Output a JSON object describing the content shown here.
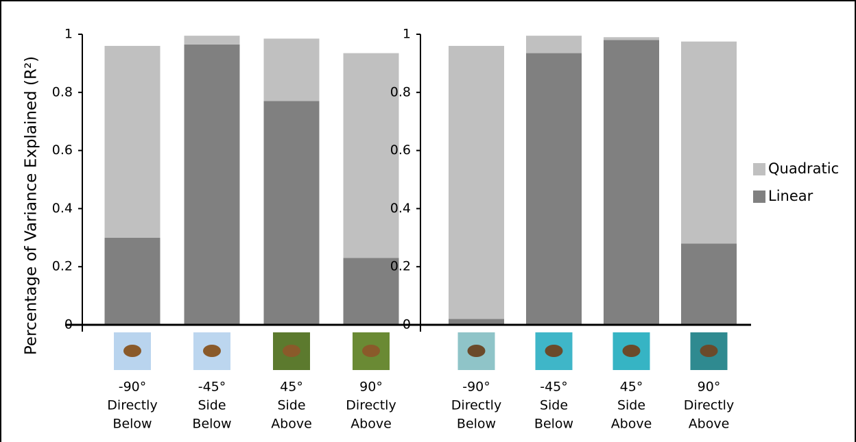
{
  "chart_data": [
    {
      "type": "bar",
      "stacked": true,
      "ylabel": "Percentage of Variance Explained (R²)",
      "categories": [
        [
          "-90°",
          "Directly",
          "Below"
        ],
        [
          "-45°",
          "Side",
          "Below"
        ],
        [
          "45°",
          "Side",
          "Above"
        ],
        [
          "90°",
          "Directly",
          "Above"
        ]
      ],
      "series": [
        {
          "name": "Linear",
          "color": "#808080",
          "values": [
            0.3,
            0.965,
            0.77,
            0.23
          ]
        },
        {
          "name": "Quadratic",
          "color": "#c0c0c0",
          "values": [
            0.66,
            0.03,
            0.215,
            0.705
          ]
        }
      ],
      "ylim": [
        0,
        1
      ],
      "yticks": [
        0,
        0.2,
        0.4,
        0.6,
        0.8,
        1
      ]
    },
    {
      "type": "bar",
      "stacked": true,
      "categories": [
        [
          "-90°",
          "Directly",
          "Below"
        ],
        [
          "-45°",
          "Side",
          "Below"
        ],
        [
          "45°",
          "Side",
          "Above"
        ],
        [
          "90°",
          "Directly",
          "Above"
        ]
      ],
      "series": [
        {
          "color": "#808080",
          "values": [
            0.02,
            0.935,
            0.98,
            0.28
          ]
        },
        {
          "color": "#c0c0c0",
          "values": [
            0.94,
            0.06,
            0.01,
            0.695
          ]
        }
      ],
      "ylim": [
        0,
        1
      ],
      "yticks": [
        0,
        0.2,
        0.4,
        0.6,
        0.8,
        1
      ]
    }
  ]
}
